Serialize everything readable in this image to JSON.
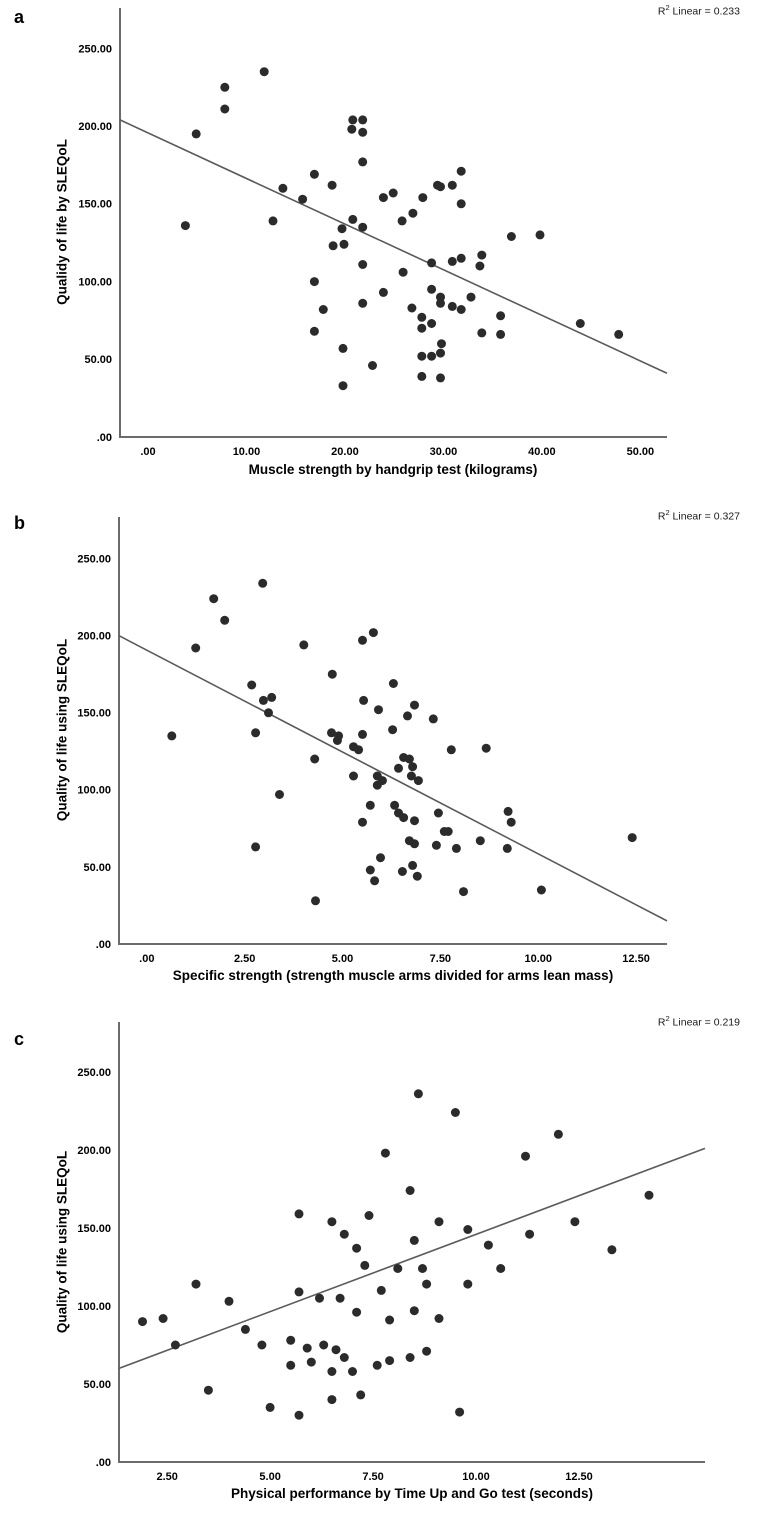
{
  "figure": {
    "background": "#ffffff",
    "dot_color": "#2b2b2b",
    "line_color": "#5a5a5a",
    "axis_color": "#6b6b6b"
  },
  "chart_data": [
    {
      "type": "scatter",
      "corner_label": "a",
      "r2_base": "R",
      "r2_sup": "2",
      "r2_tail": " Linear = 0.233",
      "xlabel": "Muscle strength by handgrip test (kilograms)",
      "ylabel": "Qualidy of life by SLEQoL",
      "xlim": [
        -2.84,
        52.7
      ],
      "ylim": [
        0,
        276
      ],
      "xtick_values": [
        0,
        10,
        20,
        30,
        40,
        50
      ],
      "xtick_labels": [
        ".00",
        "10.00",
        "20.00",
        "30.00",
        "40.00",
        "50.00"
      ],
      "ytick_values": [
        0,
        50,
        100,
        150,
        200,
        250
      ],
      "ytick_labels": [
        ".00",
        "50.00",
        "100.00",
        "150.00",
        "200.00",
        "250.00"
      ],
      "trend_line": {
        "x1": -2.84,
        "y1": 204,
        "x2": 52.7,
        "y2": 41
      },
      "points": [
        [
          11.8,
          235
        ],
        [
          7.8,
          225
        ],
        [
          7.8,
          211
        ],
        [
          4.9,
          195
        ],
        [
          20.8,
          204
        ],
        [
          21.8,
          204
        ],
        [
          20.7,
          198
        ],
        [
          21.8,
          196
        ],
        [
          21.8,
          177
        ],
        [
          16.9,
          169
        ],
        [
          18.7,
          162
        ],
        [
          13.7,
          160
        ],
        [
          15.7,
          153
        ],
        [
          23.9,
          154
        ],
        [
          24.9,
          157
        ],
        [
          27.9,
          154
        ],
        [
          29.4,
          162
        ],
        [
          25.8,
          139
        ],
        [
          26.9,
          144
        ],
        [
          12.7,
          139
        ],
        [
          3.8,
          136
        ],
        [
          19.7,
          134
        ],
        [
          20.8,
          140
        ],
        [
          21.8,
          135
        ],
        [
          18.8,
          123
        ],
        [
          19.9,
          124
        ],
        [
          21.8,
          111
        ],
        [
          25.9,
          106
        ],
        [
          28.8,
          112
        ],
        [
          16.9,
          100
        ],
        [
          23.9,
          93
        ],
        [
          28.8,
          95
        ],
        [
          21.8,
          86
        ],
        [
          17.8,
          82
        ],
        [
          26.8,
          83
        ],
        [
          27.8,
          77
        ],
        [
          28.8,
          73
        ],
        [
          27.8,
          70
        ],
        [
          16.9,
          68
        ],
        [
          19.8,
          57
        ],
        [
          22.8,
          46
        ],
        [
          27.8,
          52
        ],
        [
          27.8,
          39
        ],
        [
          19.8,
          33
        ],
        [
          31.8,
          171
        ],
        [
          29.7,
          161
        ],
        [
          30.9,
          162
        ],
        [
          31.8,
          150
        ],
        [
          36.9,
          129
        ],
        [
          39.8,
          130
        ],
        [
          31.8,
          115
        ],
        [
          30.9,
          113
        ],
        [
          33.9,
          117
        ],
        [
          33.7,
          110
        ],
        [
          29.7,
          90
        ],
        [
          29.7,
          86
        ],
        [
          30.9,
          84
        ],
        [
          31.8,
          82
        ],
        [
          32.8,
          90
        ],
        [
          35.8,
          78
        ],
        [
          33.9,
          67
        ],
        [
          35.8,
          66
        ],
        [
          43.9,
          73
        ],
        [
          47.8,
          66
        ],
        [
          29.8,
          60
        ],
        [
          29.7,
          54
        ],
        [
          28.8,
          52
        ],
        [
          29.7,
          38
        ]
      ]
    },
    {
      "type": "scatter",
      "corner_label": "b",
      "r2_base": "R",
      "r2_sup": "2",
      "r2_tail": " Linear = 0.327",
      "xlabel": "Specific strength (strength muscle arms divided for arms lean mass)",
      "ylabel": "Quality of life using SLEQoL",
      "xlim": [
        -0.71,
        13.29
      ],
      "ylim": [
        0,
        277
      ],
      "xtick_values": [
        0,
        2.5,
        5,
        7.5,
        10,
        12.5
      ],
      "xtick_labels": [
        ".00",
        "2.50",
        "5.00",
        "7.50",
        "10.00",
        "12.50"
      ],
      "ytick_values": [
        0,
        50,
        100,
        150,
        200,
        250
      ],
      "ytick_labels": [
        ".00",
        "50.00",
        "100.00",
        "150.00",
        "200.00",
        "250.00"
      ],
      "trend_line": {
        "x1": -0.71,
        "y1": 200,
        "x2": 13.29,
        "y2": 15
      },
      "points": [
        [
          2.96,
          234
        ],
        [
          1.71,
          224
        ],
        [
          1.99,
          210
        ],
        [
          1.25,
          192
        ],
        [
          4.01,
          194
        ],
        [
          5.51,
          197
        ],
        [
          5.79,
          202
        ],
        [
          4.74,
          175
        ],
        [
          2.68,
          168
        ],
        [
          2.98,
          158
        ],
        [
          3.19,
          160
        ],
        [
          3.11,
          150
        ],
        [
          6.3,
          169
        ],
        [
          5.54,
          158
        ],
        [
          5.92,
          152
        ],
        [
          6.66,
          148
        ],
        [
          6.84,
          155
        ],
        [
          7.32,
          146
        ],
        [
          2.78,
          137
        ],
        [
          0.64,
          135
        ],
        [
          4.72,
          137
        ],
        [
          4.9,
          135
        ],
        [
          5.51,
          136
        ],
        [
          6.28,
          139
        ],
        [
          4.29,
          120
        ],
        [
          4.87,
          132
        ],
        [
          5.28,
          128
        ],
        [
          5.41,
          126
        ],
        [
          5.28,
          109
        ],
        [
          5.89,
          109
        ],
        [
          6.02,
          106
        ],
        [
          5.89,
          103
        ],
        [
          6.43,
          114
        ],
        [
          6.56,
          121
        ],
        [
          6.71,
          120
        ],
        [
          6.79,
          115
        ],
        [
          6.76,
          109
        ],
        [
          6.94,
          106
        ],
        [
          3.39,
          97
        ],
        [
          5.71,
          90
        ],
        [
          6.33,
          90
        ],
        [
          5.51,
          79
        ],
        [
          6.43,
          85
        ],
        [
          6.56,
          82
        ],
        [
          6.84,
          80
        ],
        [
          2.78,
          63
        ],
        [
          6.71,
          67
        ],
        [
          6.84,
          65
        ],
        [
          5.97,
          56
        ],
        [
          5.71,
          48
        ],
        [
          5.82,
          41
        ],
        [
          6.53,
          47
        ],
        [
          6.79,
          51
        ],
        [
          6.91,
          44
        ],
        [
          4.31,
          28
        ],
        [
          7.78,
          126
        ],
        [
          8.67,
          127
        ],
        [
          7.45,
          85
        ],
        [
          9.23,
          86
        ],
        [
          9.31,
          79
        ],
        [
          7.6,
          73
        ],
        [
          7.7,
          73
        ],
        [
          7.4,
          64
        ],
        [
          7.91,
          62
        ],
        [
          8.52,
          67
        ],
        [
          9.21,
          62
        ],
        [
          12.4,
          69
        ],
        [
          8.09,
          34
        ],
        [
          10.08,
          35
        ]
      ]
    },
    {
      "type": "scatter",
      "corner_label": "c",
      "r2_base": "R",
      "r2_sup": "2",
      "r2_tail": " Linear = 0.219",
      "xlabel": "Physical performance by Time Up and Go test (seconds)",
      "ylabel": "Quality of life using SLEQoL",
      "xlim": [
        1.33,
        15.56
      ],
      "ylim": [
        0,
        282
      ],
      "xtick_values": [
        2.5,
        5,
        7.5,
        10,
        12.5
      ],
      "xtick_labels": [
        "2.50",
        "5.00",
        "7.50",
        "10.00",
        "12.50"
      ],
      "ytick_values": [
        0,
        50,
        100,
        150,
        200,
        250
      ],
      "ytick_labels": [
        ".00",
        "50.00",
        "100.00",
        "150.00",
        "200.00",
        "250.00"
      ],
      "trend_line": {
        "x1": 1.33,
        "y1": 60,
        "x2": 15.56,
        "y2": 201
      },
      "points": [
        [
          8.6,
          236
        ],
        [
          9.5,
          224
        ],
        [
          12.0,
          210
        ],
        [
          7.8,
          198
        ],
        [
          11.2,
          196
        ],
        [
          14.2,
          171
        ],
        [
          13.3,
          136
        ],
        [
          8.4,
          174
        ],
        [
          7.4,
          158
        ],
        [
          5.7,
          159
        ],
        [
          6.5,
          154
        ],
        [
          6.8,
          146
        ],
        [
          7.1,
          137
        ],
        [
          8.5,
          142
        ],
        [
          9.1,
          154
        ],
        [
          9.8,
          149
        ],
        [
          10.3,
          139
        ],
        [
          7.3,
          126
        ],
        [
          8.1,
          124
        ],
        [
          8.7,
          124
        ],
        [
          8.8,
          114
        ],
        [
          7.7,
          110
        ],
        [
          6.7,
          105
        ],
        [
          6.2,
          105
        ],
        [
          5.7,
          109
        ],
        [
          7.1,
          96
        ],
        [
          7.9,
          91
        ],
        [
          8.5,
          97
        ],
        [
          9.1,
          92
        ],
        [
          3.2,
          114
        ],
        [
          4.0,
          103
        ],
        [
          2.4,
          92
        ],
        [
          1.9,
          90
        ],
        [
          2.7,
          75
        ],
        [
          4.4,
          85
        ],
        [
          4.8,
          75
        ],
        [
          5.5,
          78
        ],
        [
          5.9,
          73
        ],
        [
          6.3,
          75
        ],
        [
          6.6,
          72
        ],
        [
          6.8,
          67
        ],
        [
          6.0,
          64
        ],
        [
          5.5,
          62
        ],
        [
          6.5,
          58
        ],
        [
          7.0,
          58
        ],
        [
          7.6,
          62
        ],
        [
          7.9,
          65
        ],
        [
          8.4,
          67
        ],
        [
          8.8,
          71
        ],
        [
          3.5,
          46
        ],
        [
          5.0,
          35
        ],
        [
          5.7,
          30
        ],
        [
          6.5,
          40
        ],
        [
          7.2,
          43
        ],
        [
          9.6,
          32
        ],
        [
          11.3,
          146
        ],
        [
          12.4,
          154
        ],
        [
          10.6,
          124
        ],
        [
          9.8,
          114
        ]
      ]
    }
  ]
}
